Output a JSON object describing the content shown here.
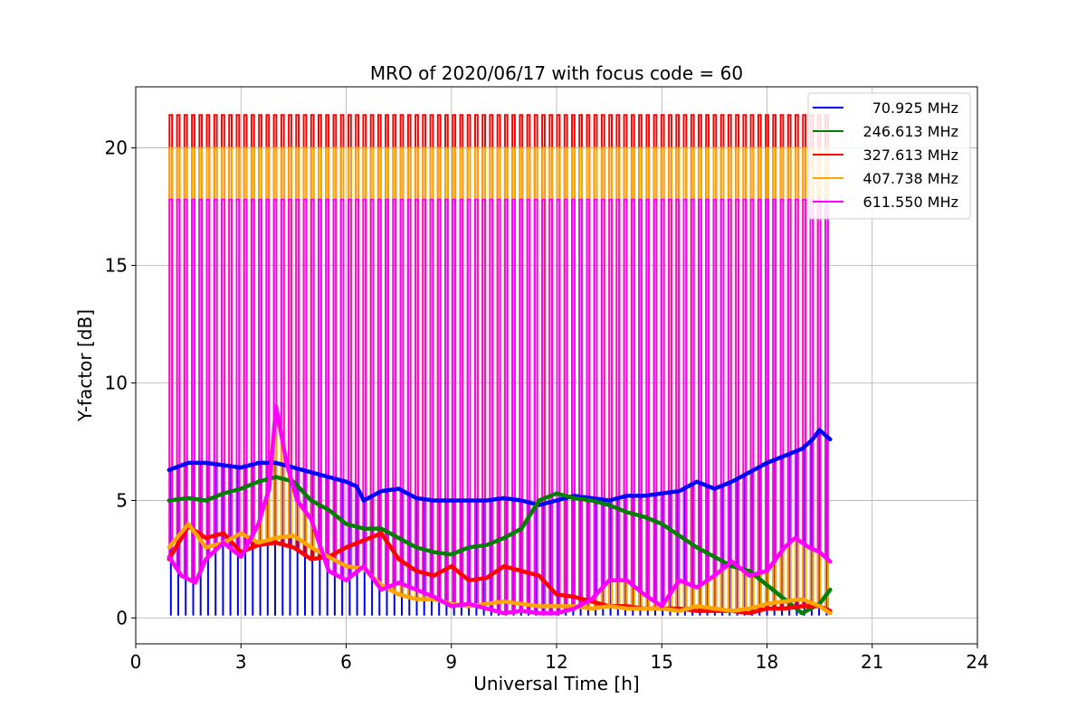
{
  "chart_data": {
    "type": "line",
    "title": "MRO of 2020/06/17 with focus code = 60",
    "xlabel": "Universal Time [h]",
    "ylabel": "Y-factor [dB]",
    "xlim": [
      0,
      24
    ],
    "ylim": [
      -1.1,
      22.6
    ],
    "xticks": [
      0,
      3,
      6,
      9,
      12,
      15,
      18,
      21,
      24
    ],
    "yticks": [
      0,
      5,
      10,
      15,
      20
    ],
    "grid": true,
    "legend_position": "top-right",
    "pulse_train": {
      "x_start": 1.0,
      "x_end": 19.7,
      "count": 89,
      "peak_dB": {
        "327.613 MHz": 21.4,
        "407.738 MHz": 20.0,
        "611.550 MHz": 17.8,
        "70.925 MHz": 0.1
      }
    },
    "series": [
      {
        "name": "70.925 MHz",
        "color": "#0000ff",
        "x": [
          0.95,
          1.5,
          2.0,
          2.5,
          3.0,
          3.5,
          4.0,
          4.5,
          5.0,
          5.5,
          6.0,
          6.3,
          6.5,
          7.0,
          7.5,
          8.0,
          8.5,
          9.0,
          9.5,
          10.0,
          10.5,
          11.0,
          11.5,
          12.0,
          12.5,
          13.0,
          13.5,
          14.0,
          14.5,
          15.0,
          15.5,
          16.0,
          16.5,
          17.0,
          17.5,
          18.0,
          18.5,
          19.0,
          19.3,
          19.5,
          19.8
        ],
        "y": [
          6.3,
          6.6,
          6.6,
          6.5,
          6.4,
          6.6,
          6.6,
          6.4,
          6.2,
          6.0,
          5.8,
          5.6,
          5.0,
          5.4,
          5.5,
          5.1,
          5.0,
          5.0,
          5.0,
          5.0,
          5.1,
          5.0,
          4.8,
          5.0,
          5.2,
          5.1,
          5.0,
          5.2,
          5.2,
          5.3,
          5.4,
          5.8,
          5.5,
          5.8,
          6.2,
          6.6,
          6.9,
          7.2,
          7.6,
          8.0,
          7.6
        ]
      },
      {
        "name": "246.613 MHz",
        "color": "#008000",
        "x": [
          0.95,
          1.5,
          2.0,
          2.5,
          3.0,
          3.5,
          4.0,
          4.5,
          5.0,
          5.5,
          6.0,
          6.5,
          7.0,
          7.5,
          8.0,
          8.5,
          9.0,
          9.5,
          10.0,
          10.5,
          11.0,
          11.5,
          12.0,
          12.5,
          13.0,
          13.5,
          14.0,
          14.5,
          15.0,
          15.5,
          16.0,
          16.5,
          17.0,
          17.5,
          18.0,
          18.5,
          19.0,
          19.5,
          19.8
        ],
        "y": [
          5.0,
          5.1,
          5.0,
          5.3,
          5.5,
          5.8,
          6.0,
          5.8,
          5.0,
          4.6,
          4.0,
          3.8,
          3.8,
          3.4,
          3.0,
          2.8,
          2.7,
          3.0,
          3.1,
          3.4,
          3.8,
          5.0,
          5.3,
          5.1,
          5.0,
          4.8,
          4.5,
          4.3,
          4.0,
          3.5,
          3.0,
          2.6,
          2.2,
          2.0,
          1.4,
          0.8,
          0.2,
          0.6,
          1.2
        ]
      },
      {
        "name": "327.613 MHz",
        "color": "#ff0000",
        "x": [
          0.95,
          1.5,
          2.0,
          2.5,
          3.0,
          3.5,
          4.0,
          4.5,
          5.0,
          5.5,
          6.0,
          6.5,
          7.0,
          7.5,
          8.0,
          8.5,
          9.0,
          9.5,
          10.0,
          10.5,
          11.0,
          11.5,
          12.0,
          12.5,
          13.0,
          13.5,
          14.0,
          14.5,
          15.0,
          15.5,
          16.0,
          16.5,
          17.0,
          17.5,
          18.0,
          18.5,
          19.0,
          19.5,
          19.8
        ],
        "y": [
          2.5,
          3.9,
          3.4,
          3.6,
          2.8,
          3.1,
          3.2,
          3.0,
          2.5,
          2.6,
          3.0,
          3.3,
          3.6,
          2.5,
          2.0,
          1.8,
          2.2,
          1.6,
          1.7,
          2.2,
          2.0,
          1.8,
          1.0,
          0.9,
          0.7,
          0.5,
          0.5,
          0.4,
          0.4,
          0.4,
          0.3,
          0.3,
          0.3,
          0.2,
          0.4,
          0.4,
          0.5,
          0.5,
          0.3
        ]
      },
      {
        "name": "407.738 MHz",
        "color": "#ffa500",
        "x": [
          0.95,
          1.5,
          2.0,
          2.5,
          3.0,
          3.5,
          4.0,
          4.5,
          5.0,
          5.5,
          6.0,
          6.5,
          7.0,
          7.5,
          8.0,
          8.5,
          9.0,
          9.5,
          10.0,
          10.5,
          11.0,
          11.5,
          12.0,
          12.5,
          13.0,
          13.5,
          14.0,
          14.5,
          15.0,
          15.5,
          16.0,
          16.5,
          17.0,
          17.5,
          18.0,
          18.5,
          19.0,
          19.5,
          19.8
        ],
        "y": [
          3.0,
          4.0,
          3.0,
          3.2,
          3.6,
          3.2,
          3.4,
          3.5,
          3.0,
          2.6,
          2.2,
          2.1,
          1.4,
          1.0,
          0.8,
          0.8,
          0.6,
          0.5,
          0.6,
          0.7,
          0.6,
          0.5,
          0.5,
          0.5,
          0.4,
          0.5,
          0.4,
          0.4,
          0.4,
          0.3,
          0.5,
          0.4,
          0.3,
          0.4,
          0.6,
          0.7,
          0.8,
          0.5,
          0.2
        ]
      },
      {
        "name": "611.550 MHz",
        "color": "#ff00ff",
        "x": [
          0.95,
          1.3,
          1.7,
          2.0,
          2.5,
          3.0,
          3.5,
          3.8,
          4.0,
          4.3,
          4.6,
          5.0,
          5.5,
          6.0,
          6.5,
          7.0,
          7.5,
          8.0,
          8.5,
          9.0,
          9.5,
          10.0,
          10.5,
          11.0,
          11.5,
          12.0,
          12.5,
          13.0,
          13.5,
          14.0,
          14.5,
          15.0,
          15.5,
          16.0,
          16.5,
          17.0,
          17.5,
          18.0,
          18.5,
          18.8,
          19.2,
          19.5,
          19.8
        ],
        "y": [
          2.6,
          1.8,
          1.5,
          2.5,
          3.2,
          2.6,
          4.0,
          5.5,
          9.0,
          6.6,
          5.0,
          4.2,
          2.0,
          1.6,
          2.2,
          1.2,
          1.5,
          1.2,
          0.9,
          0.5,
          0.6,
          0.4,
          0.2,
          0.3,
          0.2,
          0.2,
          0.4,
          0.8,
          1.6,
          1.6,
          1.0,
          0.5,
          1.6,
          1.3,
          1.8,
          2.4,
          1.8,
          2.0,
          3.0,
          3.4,
          3.0,
          2.8,
          2.4
        ]
      }
    ]
  }
}
